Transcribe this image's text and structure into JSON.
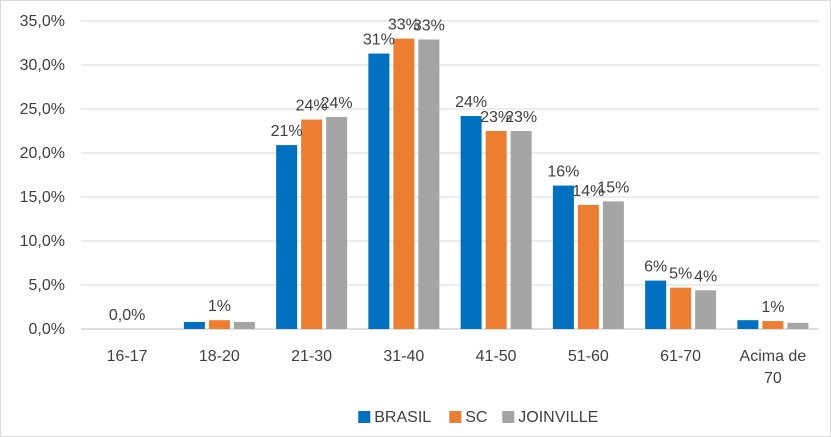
{
  "chart_data": {
    "type": "bar",
    "categories": [
      [
        "16-17"
      ],
      [
        "18-20"
      ],
      [
        "21-30"
      ],
      [
        "31-40"
      ],
      [
        "41-50"
      ],
      [
        "51-60"
      ],
      [
        "61-70"
      ],
      [
        "Acima de",
        "70"
      ]
    ],
    "series": [
      {
        "name": "BRASIL",
        "color": "#0070c0",
        "values": [
          0.0,
          0.8,
          20.9,
          31.3,
          24.2,
          16.3,
          5.5,
          1.0
        ],
        "labels": [
          "",
          "",
          "21%",
          "31%",
          "24%",
          "16%",
          "6%",
          ""
        ]
      },
      {
        "name": "SC",
        "color": "#ed7d31",
        "values": [
          0.0,
          1.0,
          23.8,
          33.0,
          22.5,
          14.1,
          4.7,
          0.9
        ],
        "labels": [
          "0,0%",
          "1%",
          "24%",
          "33%",
          "23%",
          "14%",
          "5%",
          "1%"
        ]
      },
      {
        "name": "JOINVILLE",
        "color": "#a5a5a5",
        "values": [
          0.0,
          0.8,
          24.1,
          32.9,
          22.5,
          14.5,
          4.4,
          0.7
        ],
        "labels": [
          "",
          "",
          "24%",
          "33%",
          "23%",
          "15%",
          "4%",
          ""
        ]
      }
    ],
    "y_ticks": [
      "0,0%",
      "5,0%",
      "10,0%",
      "15,0%",
      "20,0%",
      "25,0%",
      "30,0%",
      "35,0%"
    ],
    "ylim": [
      0,
      35
    ],
    "grid": true,
    "legend_position": "bottom"
  }
}
